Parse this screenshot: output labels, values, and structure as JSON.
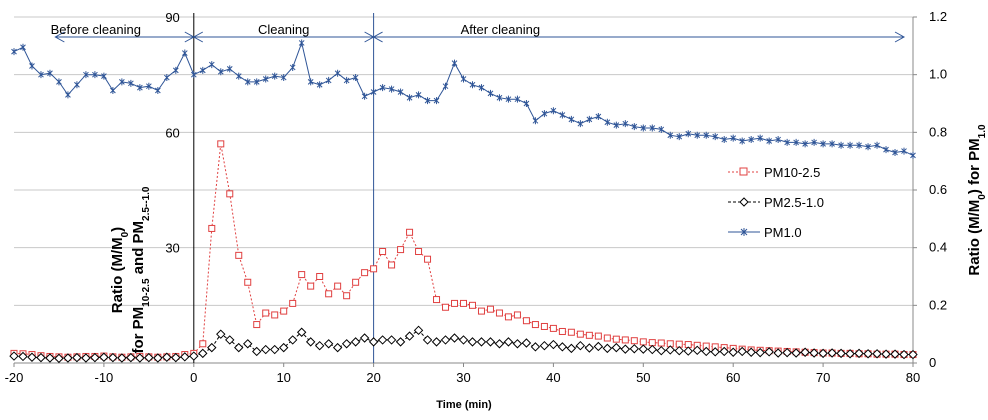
{
  "chart_data": {
    "type": "line",
    "xlabel": "Time (min)",
    "ylabel_left_line1": "Ratio (M/M",
    "ylabel_left_line1_sub": "0",
    "ylabel_left_line1_end": ")",
    "ylabel_left_line2_a": "for PM",
    "ylabel_left_line2_sub1": "10-2.5",
    "ylabel_left_line2_b": " and PM",
    "ylabel_left_line2_sub2": "2.5--1.0",
    "ylabel_right_a": "Ratio (M/M",
    "ylabel_right_sub0": "0",
    "ylabel_right_b": ") for PM",
    "ylabel_right_sub1": "1.0",
    "xlim": [
      -20,
      80
    ],
    "xticks": [
      -20,
      -10,
      0,
      10,
      20,
      30,
      40,
      50,
      60,
      70,
      80
    ],
    "ylim_left": [
      0,
      90
    ],
    "yticks_left": [
      30,
      60,
      90
    ],
    "ylim_right": [
      0,
      1.2
    ],
    "yticks_right": [
      "0",
      "0.2",
      "0.4",
      "0.6",
      "0.8",
      "1.0",
      "1.2"
    ],
    "grid": "horizontal",
    "legend_position": "right",
    "annotations": {
      "before": "Before cleaning",
      "cleaning": "Cleaning",
      "after": "After cleaning"
    },
    "phase_lines_x": [
      0,
      20
    ],
    "series": [
      {
        "name": "PM10-2.5",
        "axis": "left",
        "color": "#e04040",
        "marker": "square",
        "x": [
          -20,
          -19,
          -18,
          -17,
          -16,
          -15,
          -14,
          -13,
          -12,
          -11,
          -10,
          -9,
          -8,
          -7,
          -6,
          -5,
          -4,
          -3,
          -2,
          -1,
          0,
          1,
          2,
          3,
          4,
          5,
          6,
          7,
          8,
          9,
          10,
          11,
          12,
          13,
          14,
          15,
          16,
          17,
          18,
          19,
          20,
          21,
          22,
          23,
          24,
          25,
          26,
          27,
          28,
          29,
          30,
          31,
          32,
          33,
          34,
          35,
          36,
          37,
          38,
          39,
          40,
          41,
          42,
          43,
          44,
          45,
          46,
          47,
          48,
          49,
          50,
          51,
          52,
          53,
          54,
          55,
          56,
          57,
          58,
          59,
          60,
          61,
          62,
          63,
          64,
          65,
          66,
          67,
          68,
          69,
          70,
          71,
          72,
          73,
          74,
          75,
          76,
          77,
          78,
          79,
          80
        ],
        "values": [
          2.5,
          2.4,
          2.2,
          1.9,
          1.7,
          1.6,
          1.5,
          1.6,
          1.7,
          1.7,
          1.8,
          1.6,
          1.5,
          1.6,
          1.7,
          1.6,
          1.5,
          1.6,
          1.7,
          2.2,
          2.5,
          5,
          35,
          57,
          44,
          28,
          21,
          10,
          13,
          12.5,
          13.5,
          15.5,
          23,
          20,
          22.5,
          18,
          20,
          17.5,
          21,
          23.5,
          24.5,
          29,
          25.5,
          29.5,
          34,
          29,
          27,
          16.5,
          14.5,
          15.5,
          15.5,
          15,
          13.5,
          14,
          13,
          12,
          12.5,
          11,
          10,
          9.5,
          9,
          8.2,
          8,
          7.5,
          7.2,
          7,
          6.5,
          6.2,
          6,
          5.8,
          5.5,
          5.3,
          5.2,
          5,
          4.9,
          4.8,
          4.6,
          4.4,
          4.2,
          4,
          3.8,
          3.6,
          3.4,
          3.3,
          3.2,
          3.1,
          3,
          2.9,
          2.8,
          2.7,
          2.6,
          2.6,
          2.5,
          2.5,
          2.4,
          2.4,
          2.3,
          2.3,
          2.3,
          2.2,
          2.2
        ]
      },
      {
        "name": "PM2.5-1.0",
        "axis": "left",
        "color": "#000000",
        "marker": "diamond",
        "x": [
          -20,
          -19,
          -18,
          -17,
          -16,
          -15,
          -14,
          -13,
          -12,
          -11,
          -10,
          -9,
          -8,
          -7,
          -6,
          -5,
          -4,
          -3,
          -2,
          -1,
          0,
          1,
          2,
          3,
          4,
          5,
          6,
          7,
          8,
          9,
          10,
          11,
          12,
          13,
          14,
          15,
          16,
          17,
          18,
          19,
          20,
          21,
          22,
          23,
          24,
          25,
          26,
          27,
          28,
          29,
          30,
          31,
          32,
          33,
          34,
          35,
          36,
          37,
          38,
          39,
          40,
          41,
          42,
          43,
          44,
          45,
          46,
          47,
          48,
          49,
          50,
          51,
          52,
          53,
          54,
          55,
          56,
          57,
          58,
          59,
          60,
          61,
          62,
          63,
          64,
          65,
          66,
          67,
          68,
          69,
          70,
          71,
          72,
          73,
          74,
          75,
          76,
          77,
          78,
          79,
          80
        ],
        "values": [
          1.8,
          1.7,
          1.5,
          1.4,
          1.3,
          1.2,
          1.3,
          1.4,
          1.3,
          1.4,
          1.5,
          1.4,
          1.3,
          1.4,
          1.3,
          1.4,
          1.3,
          1.5,
          1.4,
          1.6,
          1.8,
          2.5,
          4,
          7.5,
          6,
          4,
          5,
          3,
          3.5,
          3.5,
          4,
          6,
          8,
          5.5,
          4.5,
          5,
          4,
          5,
          5.5,
          6.5,
          5.5,
          6,
          6,
          5.5,
          7,
          8.5,
          6,
          5.5,
          6,
          6.5,
          6,
          5.5,
          5.5,
          5.5,
          5,
          5.5,
          5,
          5.2,
          4.2,
          4.5,
          4.8,
          4.2,
          3.8,
          4.5,
          3.9,
          4.3,
          3.8,
          4,
          3.6,
          3.7,
          3.6,
          3.5,
          3.2,
          3.4,
          3.2,
          3.1,
          3.3,
          3,
          2.9,
          3,
          2.8,
          3,
          2.8,
          2.7,
          2.9,
          2.6,
          2.7,
          2.6,
          2.8,
          2.6,
          2.5,
          2.6,
          2.5,
          2.4,
          2.5,
          2.4,
          2.4,
          2.3,
          2.3,
          2.2,
          2.2
        ]
      },
      {
        "name": "PM1.0",
        "axis": "right",
        "color": "#2f5597",
        "marker": "star",
        "x": [
          -20,
          -19,
          -18,
          -17,
          -16,
          -15,
          -14,
          -13,
          -12,
          -11,
          -10,
          -9,
          -8,
          -7,
          -6,
          -5,
          -4,
          -3,
          -2,
          -1,
          0,
          1,
          2,
          3,
          4,
          5,
          6,
          7,
          8,
          9,
          10,
          11,
          12,
          13,
          14,
          15,
          16,
          17,
          18,
          19,
          20,
          21,
          22,
          23,
          24,
          25,
          26,
          27,
          28,
          29,
          30,
          31,
          32,
          33,
          34,
          35,
          36,
          37,
          38,
          39,
          40,
          41,
          42,
          43,
          44,
          45,
          46,
          47,
          48,
          49,
          50,
          51,
          52,
          53,
          54,
          55,
          56,
          57,
          58,
          59,
          60,
          61,
          62,
          63,
          64,
          65,
          66,
          67,
          68,
          69,
          70,
          71,
          72,
          73,
          74,
          75,
          76,
          77,
          78,
          79,
          80
        ],
        "values": [
          1.08,
          1.095,
          1.03,
          1.0,
          1.005,
          0.975,
          0.93,
          0.965,
          1.0,
          1.0,
          0.995,
          0.945,
          0.975,
          0.97,
          0.955,
          0.96,
          0.945,
          0.99,
          1.015,
          1.075,
          1.0,
          1.015,
          1.035,
          1.01,
          1.02,
          0.995,
          0.975,
          0.975,
          0.985,
          0.995,
          0.99,
          1.025,
          1.11,
          0.975,
          0.965,
          0.98,
          1.005,
          0.98,
          0.99,
          0.925,
          0.94,
          0.955,
          0.95,
          0.94,
          0.92,
          0.93,
          0.91,
          0.91,
          0.96,
          1.04,
          0.985,
          0.965,
          0.955,
          0.935,
          0.92,
          0.915,
          0.915,
          0.9,
          0.84,
          0.865,
          0.875,
          0.86,
          0.845,
          0.83,
          0.845,
          0.855,
          0.835,
          0.825,
          0.83,
          0.82,
          0.815,
          0.815,
          0.81,
          0.79,
          0.785,
          0.795,
          0.79,
          0.79,
          0.785,
          0.775,
          0.78,
          0.77,
          0.775,
          0.78,
          0.77,
          0.775,
          0.765,
          0.765,
          0.76,
          0.765,
          0.76,
          0.76,
          0.755,
          0.755,
          0.755,
          0.75,
          0.755,
          0.74,
          0.73,
          0.735,
          0.72
        ]
      }
    ]
  }
}
